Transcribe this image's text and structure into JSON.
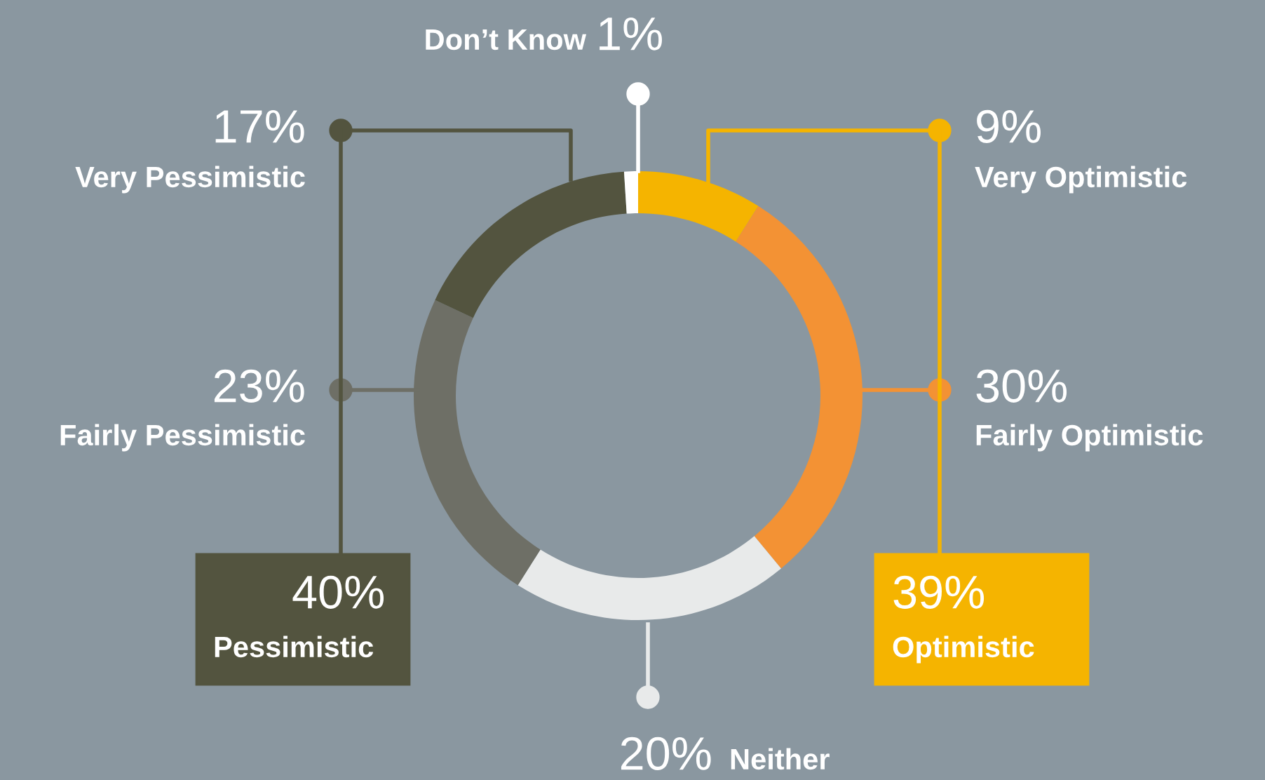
{
  "chart_data": {
    "type": "donut",
    "categories": [
      "Very Optimistic",
      "Fairly Optimistic",
      "Neither",
      "Fairly Pessimistic",
      "Very Pessimistic",
      "Don’t Know"
    ],
    "values": [
      9,
      30,
      20,
      23,
      17,
      1
    ],
    "colors": [
      "#f5b400",
      "#f39234",
      "#e8eaea",
      "#6e6f66",
      "#53543f",
      "#ffffff"
    ],
    "value_labels": [
      "9%",
      "30%",
      "20%",
      "23%",
      "17%",
      "1%"
    ],
    "annotations": [
      "39%\nOptimistic",
      "40%\nPessimistic"
    ]
  }
}
